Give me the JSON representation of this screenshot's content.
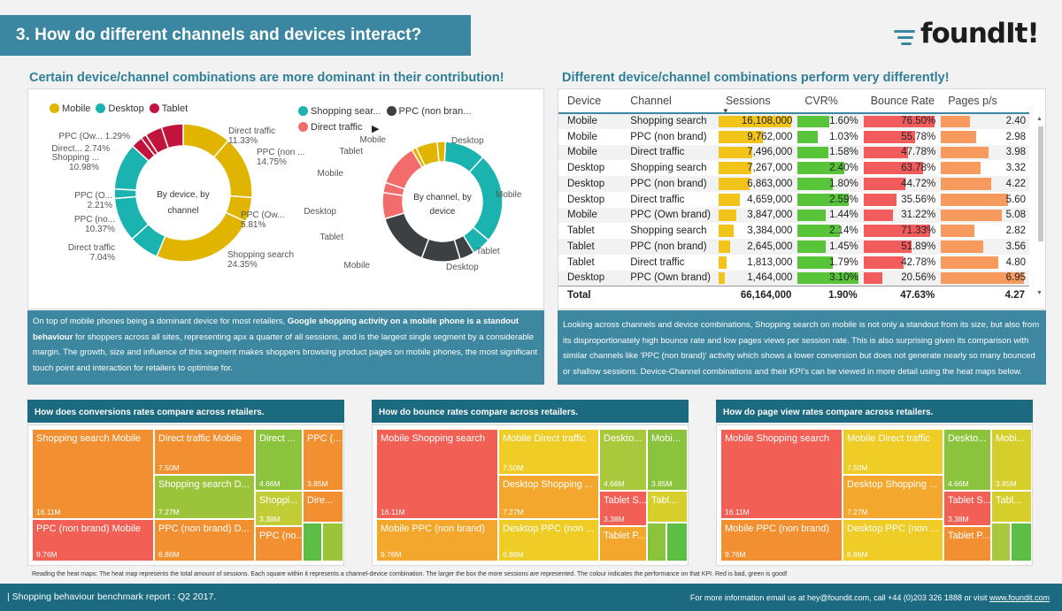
{
  "header": {
    "title": "3.  How do different channels and devices interact?"
  },
  "logo": {
    "text": "foundIt",
    "bang": "!"
  },
  "left": {
    "subtitle": "Certain device/channel combinations are more dominant in their contribution!",
    "legend1": [
      {
        "label": "Mobile",
        "color": "#e1b400"
      },
      {
        "label": "Desktop",
        "color": "#1bb3b0"
      },
      {
        "label": "Tablet",
        "color": "#c0143c"
      }
    ],
    "legend2": [
      {
        "label": "Shopping sear...",
        "color": "#1bb3b0"
      },
      {
        "label": "PPC (non bran...",
        "color": "#3c4043"
      },
      {
        "label": "Direct traffic",
        "color": "#f36c6c"
      }
    ],
    "donut1_center": [
      "By device, by",
      "channel"
    ],
    "donut1_labels": [
      {
        "text": "Direct traffic",
        "sub": "11.33%"
      },
      {
        "text": "PPC (non ...",
        "sub": "14.75%"
      },
      {
        "text": "PPC (Ow...",
        "sub": "5.81%"
      },
      {
        "text": "Shopping search",
        "sub": "24.35%"
      },
      {
        "text": "Direct traffic",
        "sub": "7.04%"
      },
      {
        "text": "PPC (no...",
        "sub": "10.37%"
      },
      {
        "text": "PPC (O...",
        "sub": "2.21%"
      },
      {
        "text": "Shopping ...",
        "sub": "10.98%"
      },
      {
        "text": "Direct... 2.74%",
        "sub": ""
      },
      {
        "text": "PPC (Ow... 1.29%",
        "sub": ""
      }
    ],
    "donut2_center": [
      "By channel, by",
      "device"
    ],
    "donut2_labels": [
      "Desktop",
      "Mobile",
      "Tablet",
      "Desktop",
      "Mobile",
      "Tablet",
      "Desktop",
      "Mobile",
      "Tablet",
      "Mobile"
    ],
    "text_pre": "On top of mobile phones being a dominant device for most retailers, ",
    "text_bold": "Google shopping activity on a mobile phone is a standout behaviour",
    "text_post": " for shoppers across all sites, representing apx a quarter of all sessions, and is the largest single segment by a considerable margin.  The growth, size and influence of this segment makes shoppers browsing product pages on  mobile phones, the most significant touch point and interaction for retailers to optimise for."
  },
  "right": {
    "subtitle": "Different device/channel combinations perform very differently!",
    "columns": [
      "Device",
      "Channel",
      "Sessions",
      "CVR%",
      "Bounce Rate",
      "Pages p/s"
    ],
    "rows": [
      {
        "device": "Mobile",
        "channel": "Shopping search",
        "sessions": "16,108,000",
        "s": 16108000,
        "cvr": "1.60%",
        "c": 1.6,
        "bounce": "76.50%",
        "b": 76.5,
        "pages": "2.40",
        "p": 2.4
      },
      {
        "device": "Mobile",
        "channel": "PPC (non brand)",
        "sessions": "9,762,000",
        "s": 9762000,
        "cvr": "1.03%",
        "c": 1.03,
        "bounce": "55.78%",
        "b": 55.78,
        "pages": "2.98",
        "p": 2.98
      },
      {
        "device": "Mobile",
        "channel": "Direct traffic",
        "sessions": "7,496,000",
        "s": 7496000,
        "cvr": "1.58%",
        "c": 1.58,
        "bounce": "47.78%",
        "b": 47.78,
        "pages": "3.98",
        "p": 3.98
      },
      {
        "device": "Desktop",
        "channel": "Shopping search",
        "sessions": "7,267,000",
        "s": 7267000,
        "cvr": "2.40%",
        "c": 2.4,
        "bounce": "63.78%",
        "b": 63.78,
        "pages": "3.32",
        "p": 3.32
      },
      {
        "device": "Desktop",
        "channel": "PPC (non brand)",
        "sessions": "6,863,000",
        "s": 6863000,
        "cvr": "1.80%",
        "c": 1.8,
        "bounce": "44.72%",
        "b": 44.72,
        "pages": "4.22",
        "p": 4.22
      },
      {
        "device": "Desktop",
        "channel": "Direct traffic",
        "sessions": "4,659,000",
        "s": 4659000,
        "cvr": "2.59%",
        "c": 2.59,
        "bounce": "35.56%",
        "b": 35.56,
        "pages": "5.60",
        "p": 5.6
      },
      {
        "device": "Mobile",
        "channel": "PPC (Own brand)",
        "sessions": "3,847,000",
        "s": 3847000,
        "cvr": "1.44%",
        "c": 1.44,
        "bounce": "31.22%",
        "b": 31.22,
        "pages": "5.08",
        "p": 5.08
      },
      {
        "device": "Tablet",
        "channel": "Shopping search",
        "sessions": "3,384,000",
        "s": 3384000,
        "cvr": "2.14%",
        "c": 2.14,
        "bounce": "71.33%",
        "b": 71.33,
        "pages": "2.82",
        "p": 2.82
      },
      {
        "device": "Tablet",
        "channel": "PPC (non brand)",
        "sessions": "2,645,000",
        "s": 2645000,
        "cvr": "1.45%",
        "c": 1.45,
        "bounce": "51.89%",
        "b": 51.89,
        "pages": "3.56",
        "p": 3.56
      },
      {
        "device": "Tablet",
        "channel": "Direct traffic",
        "sessions": "1,813,000",
        "s": 1813000,
        "cvr": "1.79%",
        "c": 1.79,
        "bounce": "42.78%",
        "b": 42.78,
        "pages": "4.80",
        "p": 4.8
      },
      {
        "device": "Desktop",
        "channel": "PPC (Own brand)",
        "sessions": "1,464,000",
        "s": 1464000,
        "cvr": "3.10%",
        "c": 3.1,
        "bounce": "20.56%",
        "b": 20.56,
        "pages": "6.95",
        "p": 6.95
      }
    ],
    "total": {
      "label": "Total",
      "sessions": "66,164,000",
      "cvr": "1.90%",
      "bounce": "47.63%",
      "pages": "4.27"
    },
    "text": "Looking across channels and device combinations, Shopping search on mobile is not only a standout from its size, but also from its disproportionately high bounce rate and low pages views per session rate. This is also surprising given its comparison with similar channels like 'PPC (non brand)' activity which shows a lower conversion but does not generate nearly so many bounced or shallow sessions. Device-Channel combinations and their KPI's can be viewed in more detail using the heat maps below."
  },
  "colors": {
    "sessions": "#f2c318",
    "cvr": "#58c43a",
    "bounce": "#f25c5c",
    "pages": "#f79a5e"
  },
  "treemaps": [
    {
      "title": "How does conversions rates compare across retailers.",
      "cells": [
        {
          "name": "Shopping search Mobile",
          "size": "16.11M",
          "color": "#f29031"
        },
        {
          "name": "PPC (non brand) Mobile",
          "size": "9.76M",
          "color": "#f15f55"
        },
        {
          "name": "Direct traffic Mobile",
          "size": "7.50M",
          "color": "#f29031"
        },
        {
          "name": "Shopping search D...",
          "size": "7.27M",
          "color": "#9bc43b"
        },
        {
          "name": "PPC (non brand) D...",
          "size": "6.86M",
          "color": "#f29031"
        },
        {
          "name": "Direct ...",
          "size": "4.66M",
          "color": "#8bc43c"
        },
        {
          "name": "PPC (...",
          "size": "3.85M",
          "color": "#f29031"
        },
        {
          "name": "Shoppi...",
          "size": "3.38M",
          "color": "#c2cd36"
        },
        {
          "name": "PPC (no...",
          "size": "",
          "color": "#f29031"
        },
        {
          "name": "Dire...",
          "size": "",
          "color": "#f29031"
        },
        {
          "name": "",
          "size": "",
          "color": "#5cbe45"
        },
        {
          "name": "",
          "size": "",
          "color": "#9bc43b"
        }
      ]
    },
    {
      "title": "How do bounce rates compare across retailers.",
      "cells": [
        {
          "name": "Mobile Shopping search",
          "size": "16.11M",
          "color": "#f15f55"
        },
        {
          "name": "Mobile PPC (non brand)",
          "size": "9.76M",
          "color": "#f3a72c"
        },
        {
          "name": "Mobile Direct traffic",
          "size": "7.50M",
          "color": "#efcc26"
        },
        {
          "name": "Desktop Shopping ...",
          "size": "7.27M",
          "color": "#f3a72c"
        },
        {
          "name": "Desktop PPC (non ...",
          "size": "6.86M",
          "color": "#efcc26"
        },
        {
          "name": "Deskto...",
          "size": "4.66M",
          "color": "#a9c83b"
        },
        {
          "name": "Mobi...",
          "size": "3.85M",
          "color": "#8bc43c"
        },
        {
          "name": "Tablet S...",
          "size": "3.38M",
          "color": "#f15f55"
        },
        {
          "name": "Tablet P...",
          "size": "",
          "color": "#f3a72c"
        },
        {
          "name": "Tabl...",
          "size": "",
          "color": "#d6cf2b"
        },
        {
          "name": "",
          "size": "",
          "color": "#8bc43c"
        },
        {
          "name": "",
          "size": "",
          "color": "#5cbe45"
        }
      ]
    },
    {
      "title": "How do page view rates compare across retailers.",
      "cells": [
        {
          "name": "Mobile Shopping search",
          "size": "16.11M",
          "color": "#f15f55"
        },
        {
          "name": "Mobile PPC (non brand)",
          "size": "9.76M",
          "color": "#f29031"
        },
        {
          "name": "Mobile Direct traffic",
          "size": "7.50M",
          "color": "#efcc26"
        },
        {
          "name": "Desktop Shopping ...",
          "size": "7.27M",
          "color": "#f3a72c"
        },
        {
          "name": "Desktop PPC (non ...",
          "size": "6.86M",
          "color": "#efcc26"
        },
        {
          "name": "Deskto...",
          "size": "4.66M",
          "color": "#8bc43c"
        },
        {
          "name": "Mobi...",
          "size": "3.85M",
          "color": "#d6cf2b"
        },
        {
          "name": "Tablet S...",
          "size": "3.38M",
          "color": "#f15f55"
        },
        {
          "name": "Tablet P...",
          "size": "",
          "color": "#f29031"
        },
        {
          "name": "Tabl...",
          "size": "",
          "color": "#d6cf2b"
        },
        {
          "name": "",
          "size": "",
          "color": "#a9c83b"
        },
        {
          "name": "",
          "size": "",
          "color": "#5cbe45"
        }
      ]
    }
  ],
  "footnote": "Reading the heat maps: The heat map represents the total amount of sessions. Each square within it represents a channel-device combination. The larger the box the more sessions are represented. The colour indicates the performance on that KPI. Red is bad, green is good!",
  "footer": {
    "left": "|  Shopping behaviour benchmark report : Q2 2017.",
    "right_pre": "For more information email us at hey@foundit.com, call +44 (0)203 326 1888 or visit ",
    "right_link": "www.foundit.com"
  }
}
